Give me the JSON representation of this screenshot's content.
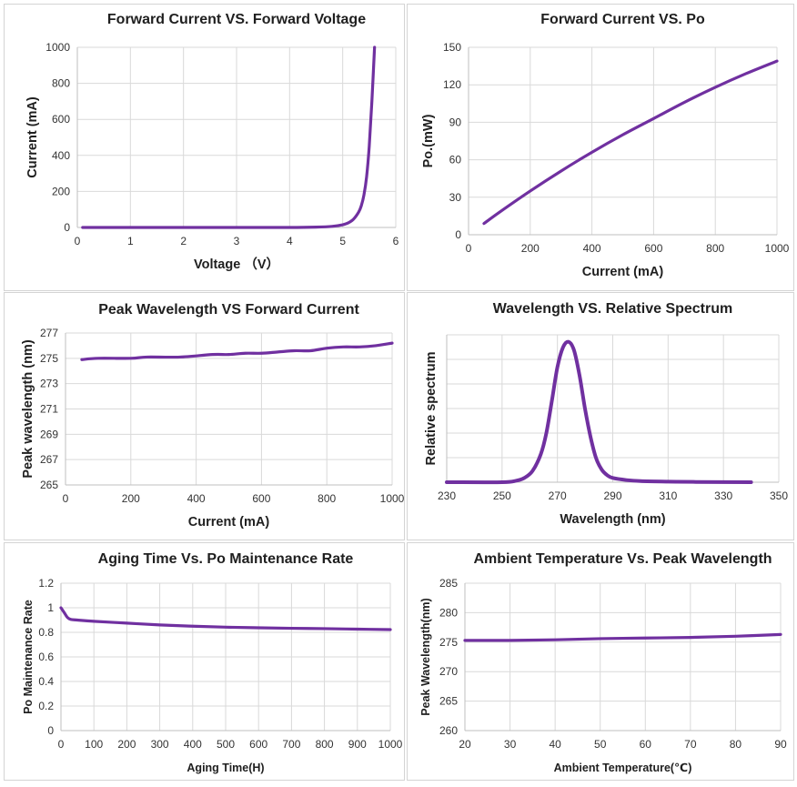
{
  "colors": {
    "series": "#7030a0",
    "grid": "#d9d9d9"
  },
  "chart_data": [
    {
      "type": "line",
      "title": "Forward Current VS. Forward Voltage",
      "xlabel": "Voltage （V）",
      "ylabel": "Current (mA)",
      "xlim": [
        0,
        6
      ],
      "ylim": [
        0,
        1000
      ],
      "xticks": [
        "0",
        "1",
        "2",
        "3",
        "4",
        "5",
        "6"
      ],
      "yticks": [
        "0",
        "200",
        "400",
        "600",
        "800",
        "1000"
      ],
      "grid": true,
      "x": [
        0.1,
        1,
        2,
        3,
        4,
        4.5,
        4.8,
        5.0,
        5.1,
        5.2,
        5.3,
        5.35,
        5.4,
        5.45,
        5.5,
        5.55,
        5.6
      ],
      "y": [
        0,
        0,
        0,
        0,
        0,
        2,
        6,
        15,
        25,
        45,
        85,
        120,
        180,
        280,
        450,
        700,
        1000
      ]
    },
    {
      "type": "line",
      "title": "Forward Current VS. Po",
      "xlabel": "Current (mA)",
      "ylabel": "Po.(mW)",
      "xlim": [
        0,
        1000
      ],
      "ylim": [
        0,
        150
      ],
      "xticks": [
        "0",
        "200",
        "400",
        "600",
        "800",
        "1000"
      ],
      "yticks": [
        "0",
        "30",
        "60",
        "90",
        "120",
        "150"
      ],
      "grid": true,
      "x": [
        50,
        100,
        200,
        300,
        400,
        500,
        600,
        700,
        800,
        900,
        1000
      ],
      "y": [
        9,
        18,
        35,
        51,
        66,
        80,
        93,
        106,
        118,
        129,
        139
      ]
    },
    {
      "type": "line",
      "title": "Peak Wavelength VS Forward Current",
      "xlabel": "Current (mA)",
      "ylabel": "Peak wavelength (nm)",
      "xlim": [
        0,
        1000
      ],
      "ylim": [
        265,
        277
      ],
      "xticks": [
        "0",
        "200",
        "400",
        "600",
        "800",
        "1000"
      ],
      "yticks": [
        "265",
        "267",
        "269",
        "271",
        "273",
        "275",
        "277"
      ],
      "grid": true,
      "x": [
        50,
        100,
        200,
        250,
        350,
        450,
        500,
        550,
        600,
        650,
        700,
        750,
        800,
        850,
        900,
        950,
        1000
      ],
      "y": [
        274.9,
        275.0,
        275.0,
        275.1,
        275.1,
        275.3,
        275.3,
        275.4,
        275.4,
        275.5,
        275.6,
        275.6,
        275.8,
        275.9,
        275.9,
        276.0,
        276.2
      ]
    },
    {
      "type": "line",
      "title": "Wavelength VS. Relative Spectrum",
      "xlabel": "Wavelength (nm)",
      "ylabel": "Relative spectrum",
      "xlim": [
        230,
        350
      ],
      "ylim": [
        0,
        1.05
      ],
      "xticks": [
        "230",
        "250",
        "270",
        "290",
        "310",
        "330",
        "350"
      ],
      "yticks": [],
      "grid": true,
      "x": [
        230,
        250,
        255,
        258,
        261,
        264,
        266,
        268,
        270,
        272,
        274,
        276,
        278,
        280,
        282,
        284,
        286,
        288,
        290,
        295,
        300,
        310,
        320,
        340
      ],
      "y": [
        0,
        0.0,
        0.01,
        0.03,
        0.08,
        0.2,
        0.35,
        0.58,
        0.82,
        0.96,
        1.0,
        0.94,
        0.76,
        0.52,
        0.32,
        0.17,
        0.09,
        0.05,
        0.03,
        0.015,
        0.008,
        0.004,
        0.002,
        0.0
      ]
    },
    {
      "type": "line",
      "title": "Aging Time Vs. Po Maintenance Rate",
      "xlabel": "Aging Time(H)",
      "ylabel": "Po Maintenance Rate",
      "xlim": [
        0,
        1000
      ],
      "ylim": [
        0,
        1.2
      ],
      "xticks": [
        "0",
        "100",
        "200",
        "300",
        "400",
        "500",
        "600",
        "700",
        "800",
        "900",
        "1000"
      ],
      "yticks": [
        "0",
        "0.2",
        "0.4",
        "0.6",
        "0.8",
        "1",
        "1.2"
      ],
      "grid": true,
      "x": [
        0,
        10,
        20,
        30,
        50,
        100,
        200,
        300,
        400,
        500,
        600,
        700,
        800,
        900,
        1000
      ],
      "y": [
        1.0,
        0.96,
        0.92,
        0.905,
        0.9,
        0.89,
        0.875,
        0.86,
        0.85,
        0.842,
        0.837,
        0.833,
        0.83,
        0.826,
        0.822
      ]
    },
    {
      "type": "line",
      "title": "Ambient Temperature Vs. Peak Wavelength",
      "xlabel": "Ambient Temperature(℃)",
      "ylabel": "Peak Wavelength(nm)",
      "xlim": [
        20,
        90
      ],
      "ylim": [
        260,
        285
      ],
      "xticks": [
        "20",
        "30",
        "40",
        "50",
        "60",
        "70",
        "80",
        "90"
      ],
      "yticks": [
        "260",
        "265",
        "270",
        "275",
        "280",
        "285"
      ],
      "grid": true,
      "x": [
        20,
        30,
        40,
        50,
        60,
        70,
        80,
        90
      ],
      "y": [
        275.3,
        275.3,
        275.4,
        275.6,
        275.7,
        275.8,
        276.0,
        276.3
      ]
    }
  ]
}
